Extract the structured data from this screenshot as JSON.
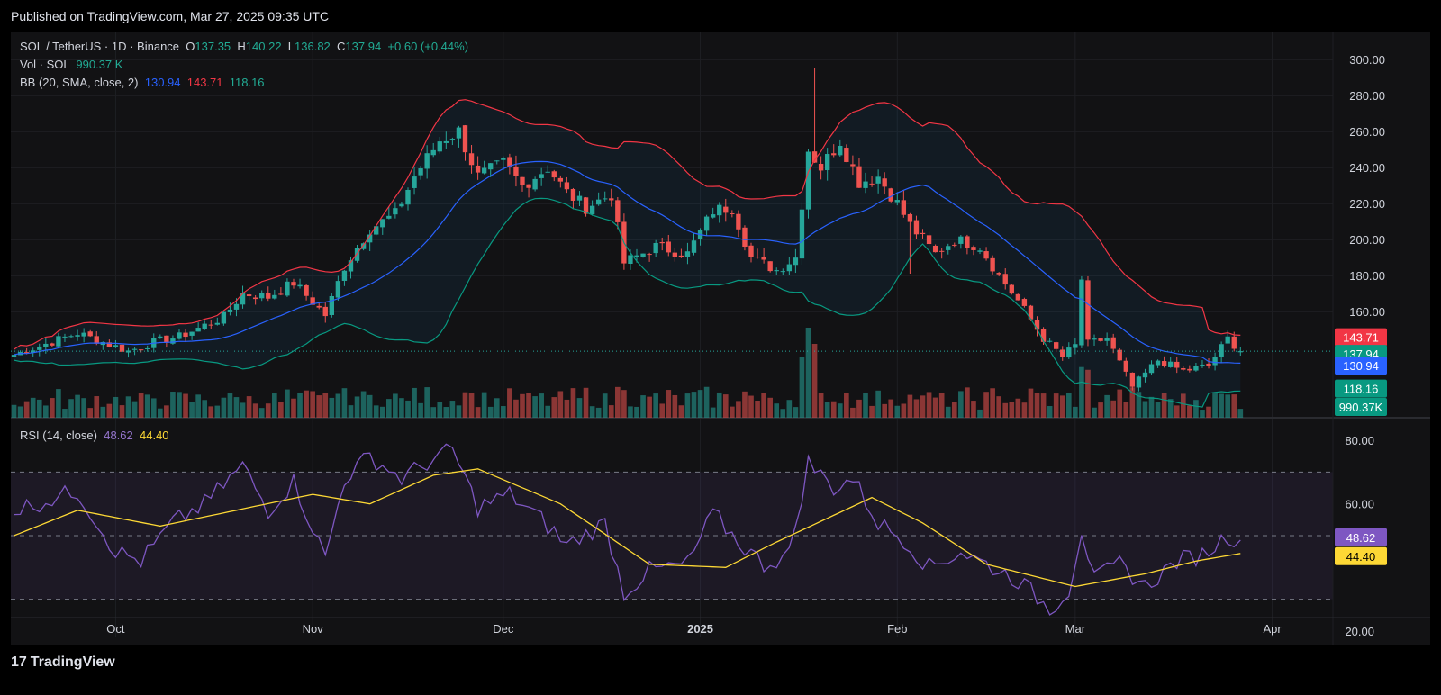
{
  "header": {
    "published": "Published on TradingView.com, Mar 27, 2025 09:35 UTC"
  },
  "footer": {
    "brand": "TradingView",
    "logo_mark": "17"
  },
  "legend": {
    "symbol": "SOL / TetherUS · 1D · Binance",
    "o_label": "O",
    "o": "137.35",
    "h_label": "H",
    "h": "140.22",
    "l_label": "L",
    "l": "136.82",
    "c_label": "C",
    "c": "137.94",
    "change": "+0.60 (+0.44%)",
    "vol_label": "Vol · SOL",
    "vol": "990.37 K",
    "bb_label": "BB (20, SMA, close, 2)",
    "bb_basis": "130.94",
    "bb_upper": "143.71",
    "bb_lower": "118.16",
    "rsi_label": "RSI (14, close)",
    "rsi": "48.62",
    "rsi_ma": "44.40"
  },
  "colors": {
    "up": "#26a69a",
    "down": "#ef5350",
    "basis": "#2962ff",
    "upper": "#f23645",
    "lower": "#089981",
    "rsi": "#7e57c2",
    "rsi_ma": "#fdd835",
    "bg": "#121214"
  },
  "chart_data": [
    {
      "type": "candlestick",
      "ylim": [
        100,
        300
      ],
      "yticks": [
        "300.00",
        "280.00",
        "260.00",
        "240.00",
        "220.00",
        "200.00",
        "180.00",
        "160.00"
      ],
      "xticks": [
        "Oct",
        "Nov",
        "Dec",
        "2025",
        "Feb",
        "Mar",
        "Apr"
      ],
      "start": "2024-09-15",
      "end": "2025-03-27",
      "price_anchors": [
        [
          "2024-09-15",
          136
        ],
        [
          "2024-09-25",
          148
        ],
        [
          "2024-10-03",
          138
        ],
        [
          "2024-10-07",
          143
        ],
        [
          "2024-10-11",
          146
        ],
        [
          "2024-10-18",
          157
        ],
        [
          "2024-10-21",
          170
        ],
        [
          "2024-10-25",
          168
        ],
        [
          "2024-10-29",
          176
        ],
        [
          "2024-11-03",
          158
        ],
        [
          "2024-11-06",
          185
        ],
        [
          "2024-11-10",
          206
        ],
        [
          "2024-11-14",
          214
        ],
        [
          "2024-11-17",
          235
        ],
        [
          "2024-11-21",
          255
        ],
        [
          "2024-11-24",
          260
        ],
        [
          "2024-11-27",
          235
        ],
        [
          "2024-12-01",
          242
        ],
        [
          "2024-12-04",
          230
        ],
        [
          "2024-12-08",
          240
        ],
        [
          "2024-12-11",
          226
        ],
        [
          "2024-12-14",
          218
        ],
        [
          "2024-12-18",
          225
        ],
        [
          "2024-12-20",
          187
        ],
        [
          "2024-12-25",
          196
        ],
        [
          "2024-12-30",
          192
        ],
        [
          "2025-01-03",
          216
        ],
        [
          "2025-01-06",
          218
        ],
        [
          "2025-01-09",
          190
        ],
        [
          "2025-01-13",
          183
        ],
        [
          "2025-01-16",
          190
        ],
        [
          "2025-01-18",
          250
        ],
        [
          "2025-01-20",
          240
        ],
        [
          "2025-01-23",
          255
        ],
        [
          "2025-01-26",
          232
        ],
        [
          "2025-01-29",
          235
        ],
        [
          "2025-02-01",
          220
        ],
        [
          "2025-02-03",
          208
        ],
        [
          "2025-02-07",
          192
        ],
        [
          "2025-02-10",
          200
        ],
        [
          "2025-02-14",
          196
        ],
        [
          "2025-02-17",
          180
        ],
        [
          "2025-02-20",
          166
        ],
        [
          "2025-02-24",
          145
        ],
        [
          "2025-02-27",
          135
        ],
        [
          "2025-03-01",
          141
        ],
        [
          "2025-03-02",
          178
        ],
        [
          "2025-03-03",
          142
        ],
        [
          "2025-03-06",
          145
        ],
        [
          "2025-03-10",
          118
        ],
        [
          "2025-03-14",
          133
        ],
        [
          "2025-03-18",
          127
        ],
        [
          "2025-03-22",
          130
        ],
        [
          "2025-03-25",
          145
        ],
        [
          "2025-03-27",
          137.94
        ]
      ],
      "bands": {
        "upper": "143.71",
        "basis": "130.94",
        "lower": "118.16",
        "last": "137.94"
      }
    },
    {
      "type": "bar",
      "name": "Vol · SOL",
      "last": "990.37K",
      "spikes": [
        [
          "2025-01-18",
          100
        ],
        [
          "2025-01-19",
          82
        ],
        [
          "2025-01-17",
          68
        ]
      ]
    },
    {
      "type": "line",
      "name": "RSI (14, close)",
      "ylim": [
        20,
        80
      ],
      "yticks": [
        "80.00",
        "60.00",
        "20.00"
      ],
      "bands": [
        70,
        50,
        30
      ],
      "rsi_last": "48.62",
      "ma_last": "44.40",
      "rsi_anchors": [
        [
          "2024-09-15",
          58
        ],
        [
          "2024-09-25",
          64
        ],
        [
          "2024-10-01",
          45
        ],
        [
          "2024-10-05",
          42
        ],
        [
          "2024-10-10",
          54
        ],
        [
          "2024-10-15",
          60
        ],
        [
          "2024-10-21",
          72
        ],
        [
          "2024-10-25",
          58
        ],
        [
          "2024-10-29",
          67
        ],
        [
          "2024-11-03",
          43
        ],
        [
          "2024-11-06",
          68
        ],
        [
          "2024-11-10",
          75
        ],
        [
          "2024-11-15",
          68
        ],
        [
          "2024-11-19",
          73
        ],
        [
          "2024-11-23",
          77
        ],
        [
          "2024-11-27",
          59
        ],
        [
          "2024-12-02",
          63
        ],
        [
          "2024-12-07",
          55
        ],
        [
          "2024-12-11",
          47
        ],
        [
          "2024-12-17",
          54
        ],
        [
          "2024-12-20",
          32
        ],
        [
          "2024-12-24",
          39
        ],
        [
          "2024-12-30",
          41
        ],
        [
          "2025-01-03",
          57
        ],
        [
          "2025-01-07",
          48
        ],
        [
          "2025-01-11",
          41
        ],
        [
          "2025-01-15",
          44
        ],
        [
          "2025-01-18",
          73
        ],
        [
          "2025-01-22",
          65
        ],
        [
          "2025-01-25",
          68
        ],
        [
          "2025-01-29",
          54
        ],
        [
          "2025-02-02",
          49
        ],
        [
          "2025-02-06",
          40
        ],
        [
          "2025-02-11",
          45
        ],
        [
          "2025-02-15",
          41
        ],
        [
          "2025-02-20",
          36
        ],
        [
          "2025-02-25",
          27
        ],
        [
          "2025-02-28",
          33
        ],
        [
          "2025-03-02",
          52
        ],
        [
          "2025-03-04",
          36
        ],
        [
          "2025-03-08",
          41
        ],
        [
          "2025-03-12",
          34
        ],
        [
          "2025-03-17",
          42
        ],
        [
          "2025-03-21",
          44
        ],
        [
          "2025-03-25",
          50
        ],
        [
          "2025-03-27",
          48.62
        ]
      ],
      "ma_anchors": [
        [
          "2024-09-15",
          50
        ],
        [
          "2024-09-25",
          58
        ],
        [
          "2024-10-08",
          53
        ],
        [
          "2024-10-20",
          58
        ],
        [
          "2024-11-01",
          63
        ],
        [
          "2024-11-10",
          60
        ],
        [
          "2024-11-20",
          69
        ],
        [
          "2024-11-27",
          71
        ],
        [
          "2024-12-10",
          60
        ],
        [
          "2024-12-24",
          41
        ],
        [
          "2025-01-05",
          40
        ],
        [
          "2025-01-13",
          48
        ],
        [
          "2025-01-28",
          62
        ],
        [
          "2025-02-05",
          54
        ],
        [
          "2025-02-15",
          41
        ],
        [
          "2025-03-01",
          34
        ],
        [
          "2025-03-12",
          38
        ],
        [
          "2025-03-20",
          42
        ],
        [
          "2025-03-27",
          44.4
        ]
      ]
    }
  ]
}
